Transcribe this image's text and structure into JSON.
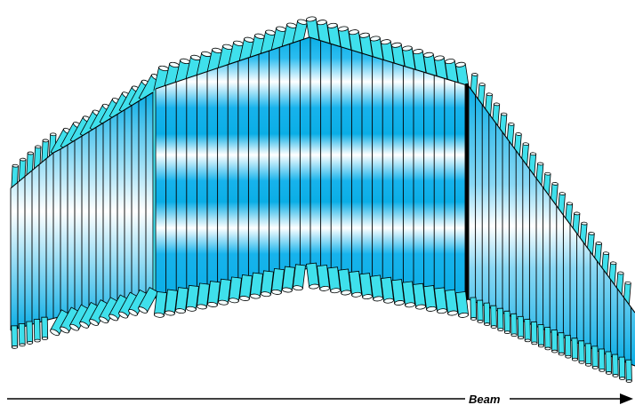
{
  "diagram": {
    "beam_label": "Beam",
    "colors": {
      "body_edge": "#0aaee6",
      "body_center": "#ffffff",
      "tube_fill": "#3fe0ec",
      "tube_cap": "#f4ffff",
      "outline": "#000000"
    }
  }
}
